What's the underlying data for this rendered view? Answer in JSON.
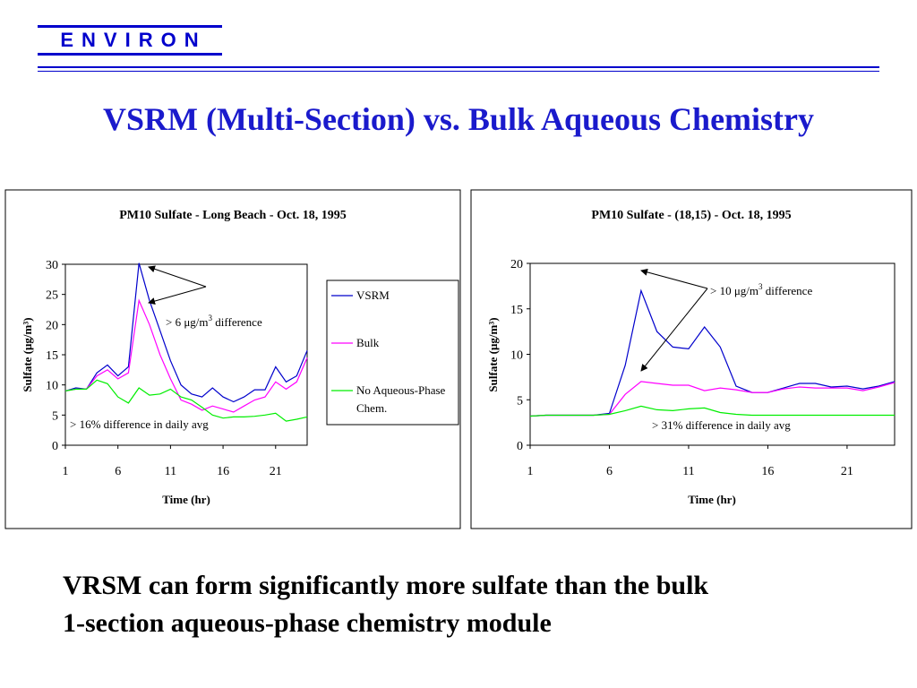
{
  "header": {
    "logo_text": "ENVIRON"
  },
  "slide": {
    "title": "VSRM (Multi-Section) vs. Bulk Aqueous Chemistry",
    "caption_line1": "VRSM can form significantly more sulfate than the bulk",
    "caption_line2": "1-section aqueous-phase chemistry module"
  },
  "colors": {
    "accent": "#0000cc",
    "title": "#1a1acc",
    "vsrm": "#0000cc",
    "bulk": "#ff00ff",
    "noaq": "#00ee00"
  },
  "chart_data": [
    {
      "type": "line",
      "title": "PM10 Sulfate - Long Beach - Oct. 18, 1995",
      "xlabel": "Time (hr)",
      "ylabel": "Sulfate (μg/m³)",
      "x": [
        1,
        2,
        3,
        4,
        5,
        6,
        7,
        8,
        9,
        10,
        11,
        12,
        13,
        14,
        15,
        16,
        17,
        18,
        19,
        20,
        21,
        22,
        23,
        24
      ],
      "xticks": [
        1,
        6,
        11,
        16,
        21
      ],
      "yticks": [
        0,
        5,
        10,
        15,
        20,
        25,
        30
      ],
      "xlim": [
        1,
        24
      ],
      "ylim": [
        0,
        30
      ],
      "legend_position": "right",
      "series": [
        {
          "name": "VSRM",
          "color": "#0000cc",
          "values": [
            9,
            9.5,
            9.3,
            12,
            13.3,
            11.5,
            13,
            30.2,
            24,
            19,
            14,
            10,
            8.5,
            8,
            9.5,
            8,
            7.2,
            8,
            9.2,
            9.2,
            13,
            10.5,
            11.5,
            15.7
          ]
        },
        {
          "name": "Bulk",
          "color": "#ff00ff",
          "values": [
            9,
            9.3,
            9.3,
            11.5,
            12.5,
            11,
            12,
            24,
            20,
            15,
            11,
            7.5,
            6.8,
            5.8,
            6.5,
            6,
            5.5,
            6.5,
            7.5,
            8,
            10.5,
            9.3,
            10.5,
            14.5
          ]
        },
        {
          "name": "No Aqueous-Phase Chem.",
          "color": "#00ee00",
          "values": [
            9,
            9.3,
            9.3,
            10.8,
            10.2,
            8,
            7,
            9.5,
            8.3,
            8.5,
            9.3,
            8,
            7.5,
            6.3,
            5,
            4.5,
            4.7,
            4.7,
            4.8,
            5,
            5.3,
            4,
            4.3,
            4.7
          ]
        }
      ],
      "annotations": [
        {
          "text_prefix": "> 6 μg/m",
          "sup": "3",
          "text_suffix": " difference"
        },
        {
          "text": "> 16% difference in daily avg"
        }
      ]
    },
    {
      "type": "line",
      "title": "PM10 Sulfate - (18,15) - Oct. 18, 1995",
      "xlabel": "Time (hr)",
      "ylabel": "Sulfate (μg/m³)",
      "x": [
        1,
        2,
        3,
        4,
        5,
        6,
        7,
        8,
        9,
        10,
        11,
        12,
        13,
        14,
        15,
        16,
        17,
        18,
        19,
        20,
        21,
        22,
        23,
        24
      ],
      "xticks": [
        1,
        6,
        11,
        16,
        21
      ],
      "yticks": [
        0,
        5,
        10,
        15,
        20
      ],
      "xlim": [
        1,
        24
      ],
      "ylim": [
        0,
        20
      ],
      "series": [
        {
          "name": "VSRM",
          "color": "#0000cc",
          "values": [
            3.2,
            3.3,
            3.3,
            3.3,
            3.3,
            3.5,
            8.8,
            17,
            12.5,
            10.8,
            10.6,
            13,
            10.8,
            6.5,
            5.8,
            5.8,
            6.3,
            6.8,
            6.8,
            6.4,
            6.5,
            6.2,
            6.5,
            7.0
          ]
        },
        {
          "name": "Bulk",
          "color": "#ff00ff",
          "values": [
            3.2,
            3.3,
            3.3,
            3.3,
            3.3,
            3.4,
            5.6,
            7.0,
            6.8,
            6.6,
            6.6,
            6.0,
            6.3,
            6.1,
            5.8,
            5.8,
            6.2,
            6.4,
            6.3,
            6.3,
            6.3,
            6.0,
            6.4,
            6.9
          ]
        },
        {
          "name": "No Aqueous-Phase Chem.",
          "color": "#00ee00",
          "values": [
            3.2,
            3.3,
            3.3,
            3.3,
            3.3,
            3.4,
            3.8,
            4.3,
            3.9,
            3.8,
            4.0,
            4.1,
            3.6,
            3.4,
            3.3,
            3.3,
            3.3,
            3.3,
            3.3,
            3.3,
            3.3,
            3.3,
            3.3,
            3.3
          ]
        }
      ],
      "annotations": [
        {
          "text_prefix": "> 10 μg/m",
          "sup": "3",
          "text_suffix": " difference"
        },
        {
          "text": "> 31% difference in daily avg"
        }
      ]
    }
  ]
}
